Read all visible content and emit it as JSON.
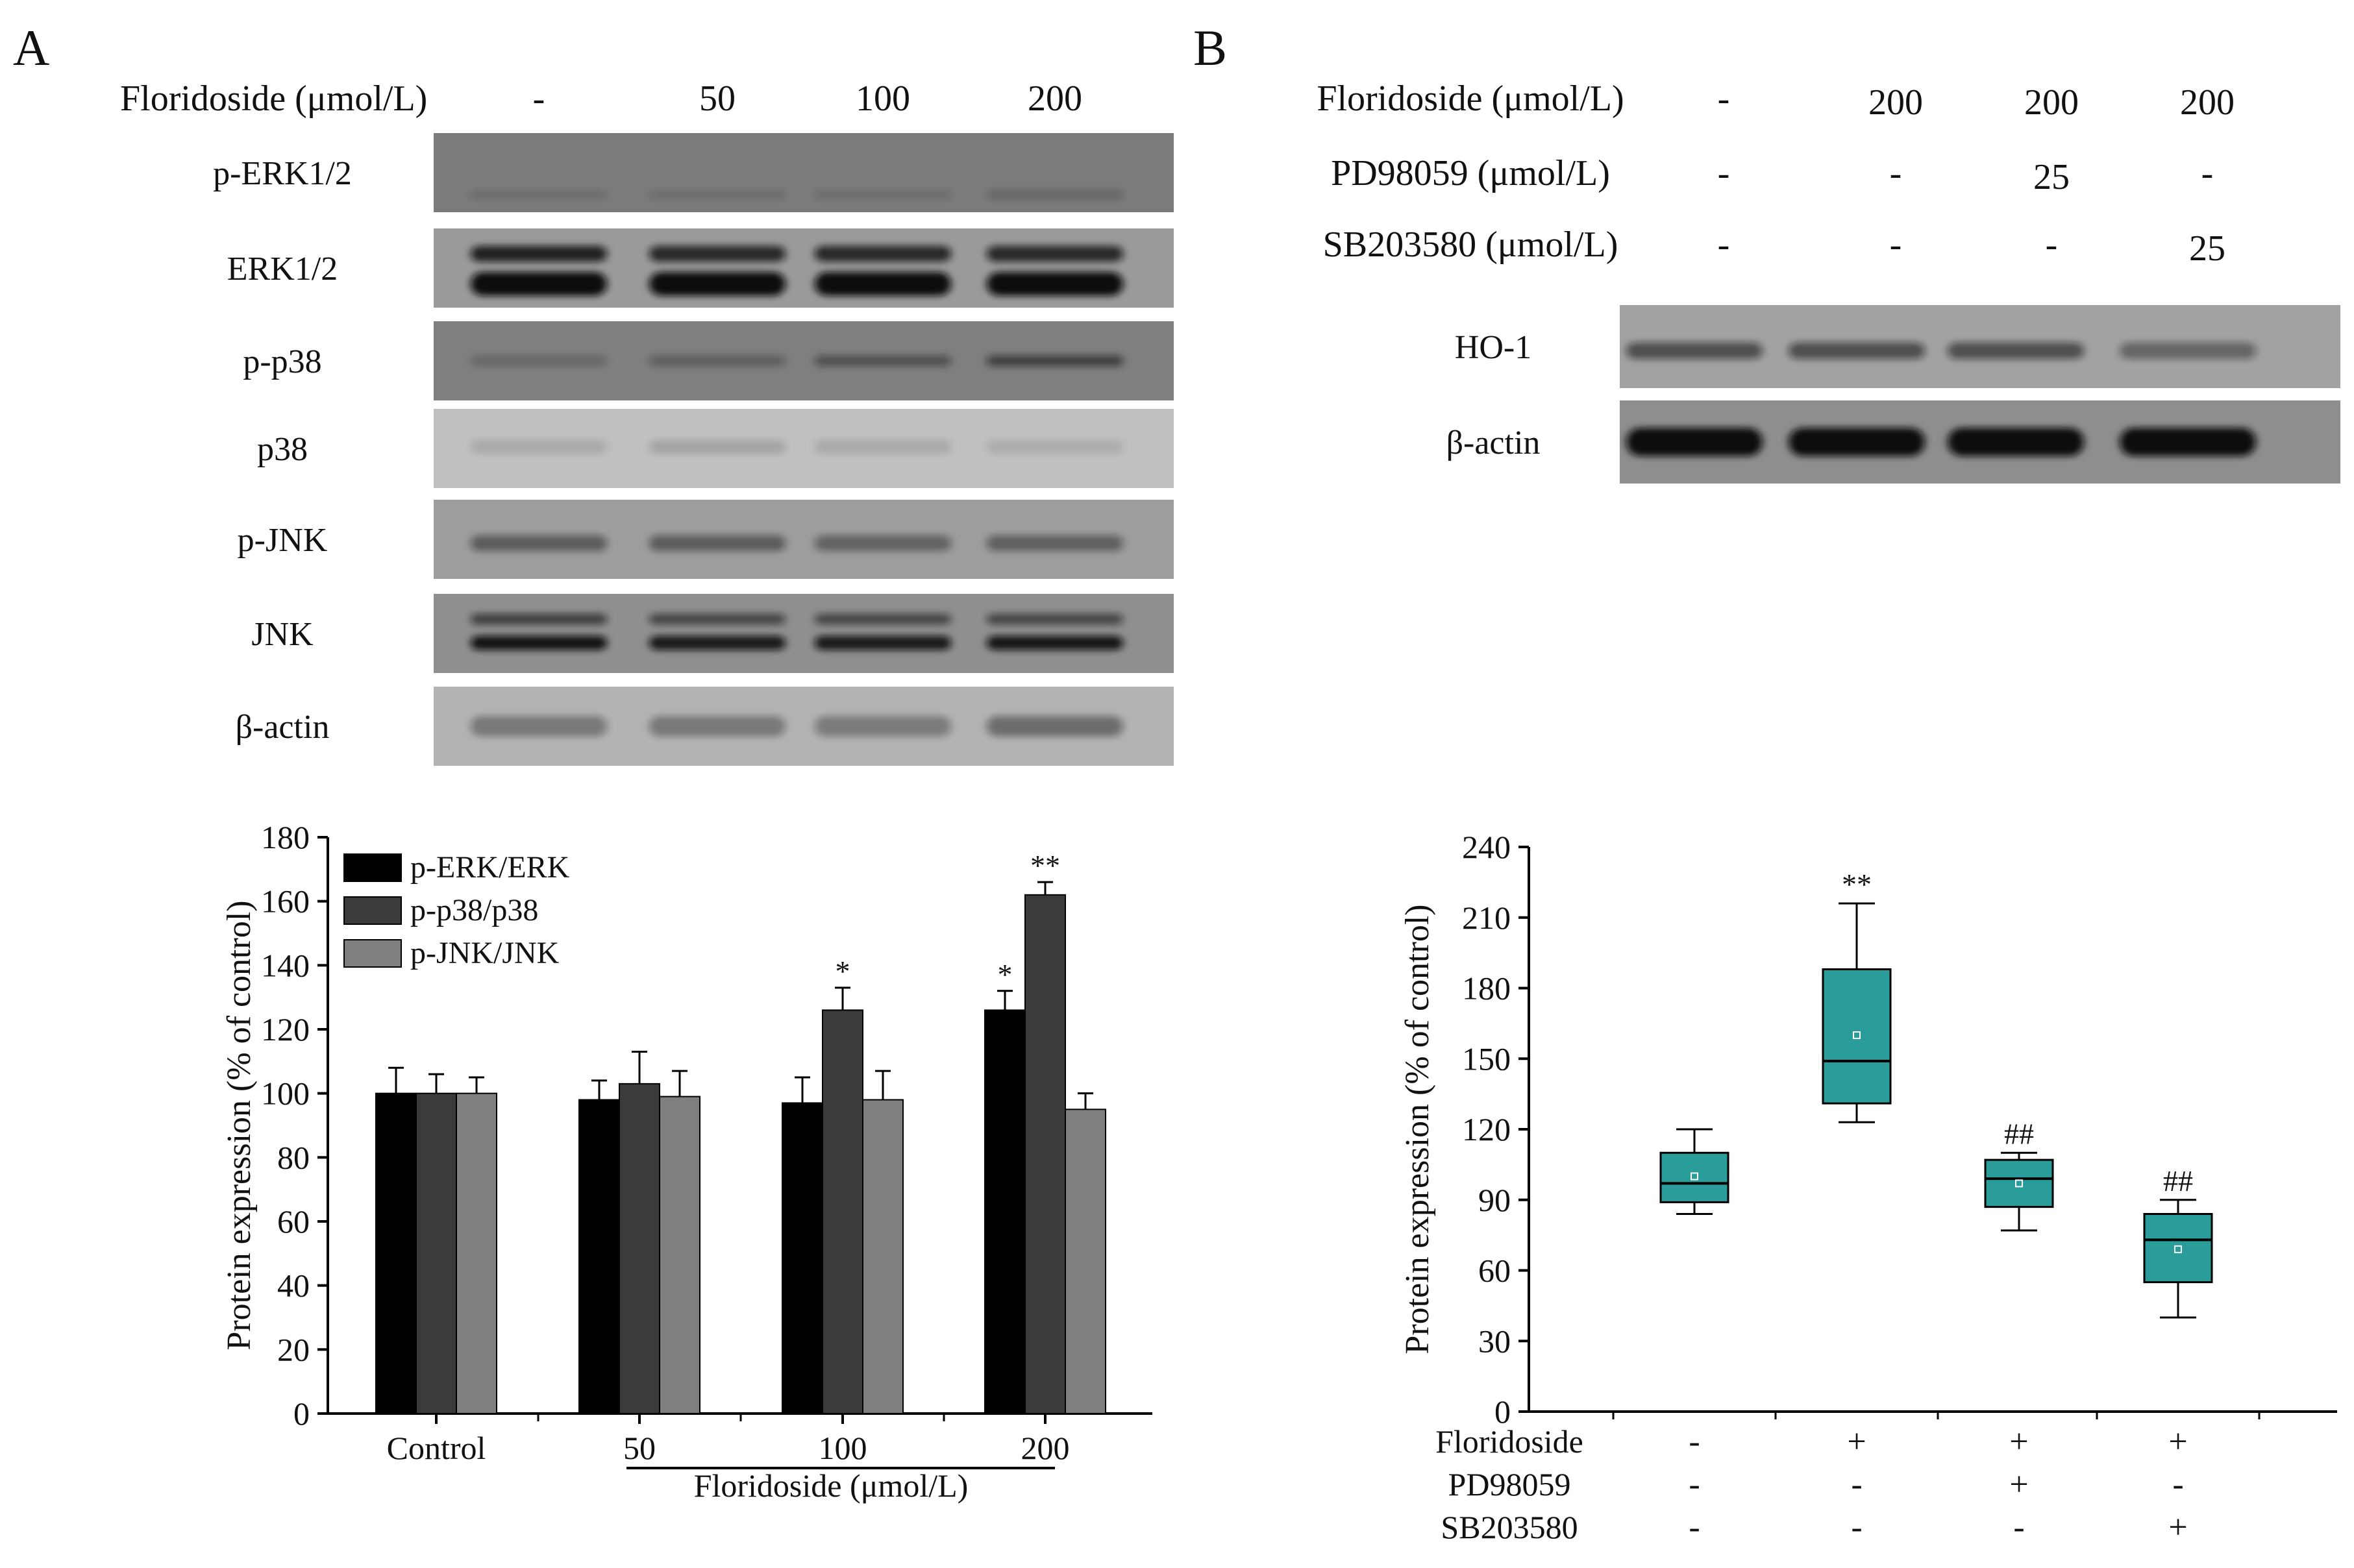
{
  "panelA": {
    "letter": "A",
    "blot": {
      "header_label": "Floridoside  (μmol/L)",
      "lanes": [
        "-",
        "50",
        "100",
        "200"
      ],
      "rows": [
        {
          "label": "p-ERK1/2",
          "bg": "#7b7b7b",
          "bands": [
            {
              "y": 0.78,
              "ints": [
                0.12,
                0.12,
                0.12,
                0.18
              ],
              "th": 0.12
            }
          ]
        },
        {
          "label": "ERK1/2",
          "bg": "#9a9a9a",
          "bands": [
            {
              "y": 0.32,
              "ints": [
                0.85,
                0.8,
                0.8,
                0.8
              ],
              "th": 0.2
            },
            {
              "y": 0.7,
              "ints": [
                1,
                1,
                1,
                1
              ],
              "th": 0.3
            }
          ]
        },
        {
          "label": "p-p38",
          "bg": "#7f7f7f",
          "bands": [
            {
              "y": 0.5,
              "ints": [
                0.2,
                0.28,
                0.4,
                0.55
              ],
              "th": 0.14
            }
          ]
        },
        {
          "label": "p38",
          "bg": "#c0c0c0",
          "bands": [
            {
              "y": 0.48,
              "ints": [
                0.12,
                0.15,
                0.12,
                0.1
              ],
              "th": 0.18
            }
          ]
        },
        {
          "label": "p-JNK",
          "bg": "#9d9d9d",
          "bands": [
            {
              "y": 0.55,
              "ints": [
                0.45,
                0.45,
                0.4,
                0.42
              ],
              "th": 0.2
            }
          ]
        },
        {
          "label": "JNK",
          "bg": "#8f8f8f",
          "bands": [
            {
              "y": 0.32,
              "ints": [
                0.6,
                0.55,
                0.55,
                0.55
              ],
              "th": 0.14
            },
            {
              "y": 0.62,
              "ints": [
                0.95,
                0.9,
                0.9,
                0.92
              ],
              "th": 0.18
            }
          ]
        },
        {
          "label": "β-actin",
          "bg": "#b3b3b3",
          "bands": [
            {
              "y": 0.5,
              "ints": [
                0.35,
                0.35,
                0.33,
                0.42
              ],
              "th": 0.26
            }
          ]
        }
      ]
    }
  },
  "panelB": {
    "letter": "B",
    "blot": {
      "condition_rows": [
        {
          "label": "Floridoside (μmol/L)",
          "values": [
            "-",
            "200",
            "200",
            "200"
          ]
        },
        {
          "label": "PD98059 (μmol/L)",
          "values": [
            "-",
            "-",
            "25",
            "-"
          ]
        },
        {
          "label": "SB203580 (μmol/L)",
          "values": [
            "-",
            "-",
            "-",
            "25"
          ]
        }
      ],
      "rows": [
        {
          "label": "HO-1",
          "bg": "#a2a2a2",
          "bands": [
            {
              "y": 0.55,
              "ints": [
                0.55,
                0.55,
                0.55,
                0.4
              ],
              "th": 0.2
            }
          ]
        },
        {
          "label": "β-actin",
          "bg": "#8e8e8e",
          "bands": [
            {
              "y": 0.5,
              "ints": [
                1,
                1,
                1,
                1
              ],
              "th": 0.34
            }
          ]
        }
      ]
    }
  },
  "chart_data": [
    {
      "type": "bar",
      "categories": [
        "Control",
        "50",
        "100",
        "200"
      ],
      "xlabel": "Floridoside (μmol/L)",
      "ylabel": "Protein expression (% of control)",
      "ylim": [
        0,
        180
      ],
      "yticks": [
        0,
        20,
        40,
        60,
        80,
        100,
        120,
        140,
        160,
        180
      ],
      "legend_position": "top-left",
      "series": [
        {
          "name": "p-ERK/ERK",
          "color": "#000000",
          "values": [
            100,
            98,
            97,
            126
          ],
          "errors": [
            8,
            6,
            8,
            6
          ],
          "significance": [
            "",
            "",
            "",
            "*"
          ]
        },
        {
          "name": "p-p38/p38",
          "color": "#3b3b3b",
          "values": [
            100,
            103,
            126,
            162
          ],
          "errors": [
            6,
            10,
            7,
            4
          ],
          "significance": [
            "",
            "",
            "*",
            "**"
          ]
        },
        {
          "name": "p-JNK/JNK",
          "color": "#7f7f7f",
          "values": [
            100,
            99,
            98,
            95
          ],
          "errors": [
            5,
            8,
            9,
            5
          ],
          "significance": [
            "",
            "",
            "",
            ""
          ]
        }
      ]
    },
    {
      "type": "box",
      "ylabel": "Protein expression (% of control)",
      "ylim": [
        0,
        240
      ],
      "yticks": [
        0,
        30,
        60,
        90,
        120,
        150,
        180,
        210,
        240
      ],
      "box_color": "#2a9d9a",
      "boxes": [
        {
          "min": 84,
          "q1": 89,
          "median": 97,
          "q3": 110,
          "max": 120,
          "mean": 100,
          "label": ""
        },
        {
          "min": 123,
          "q1": 131,
          "median": 149,
          "q3": 188,
          "max": 216,
          "mean": 160,
          "label": "**"
        },
        {
          "min": 77,
          "q1": 87,
          "median": 99,
          "q3": 107,
          "max": 110,
          "mean": 97,
          "label": "##"
        },
        {
          "min": 40,
          "q1": 55,
          "median": 73,
          "q3": 84,
          "max": 90,
          "mean": 69,
          "label": "##"
        }
      ],
      "treatment_rows": [
        {
          "label": "Floridoside",
          "values": [
            "-",
            "+",
            "+",
            "+"
          ]
        },
        {
          "label": "PD98059",
          "values": [
            "-",
            "-",
            "+",
            "-"
          ]
        },
        {
          "label": "SB203580",
          "values": [
            "-",
            "-",
            "-",
            "+"
          ]
        }
      ]
    }
  ]
}
